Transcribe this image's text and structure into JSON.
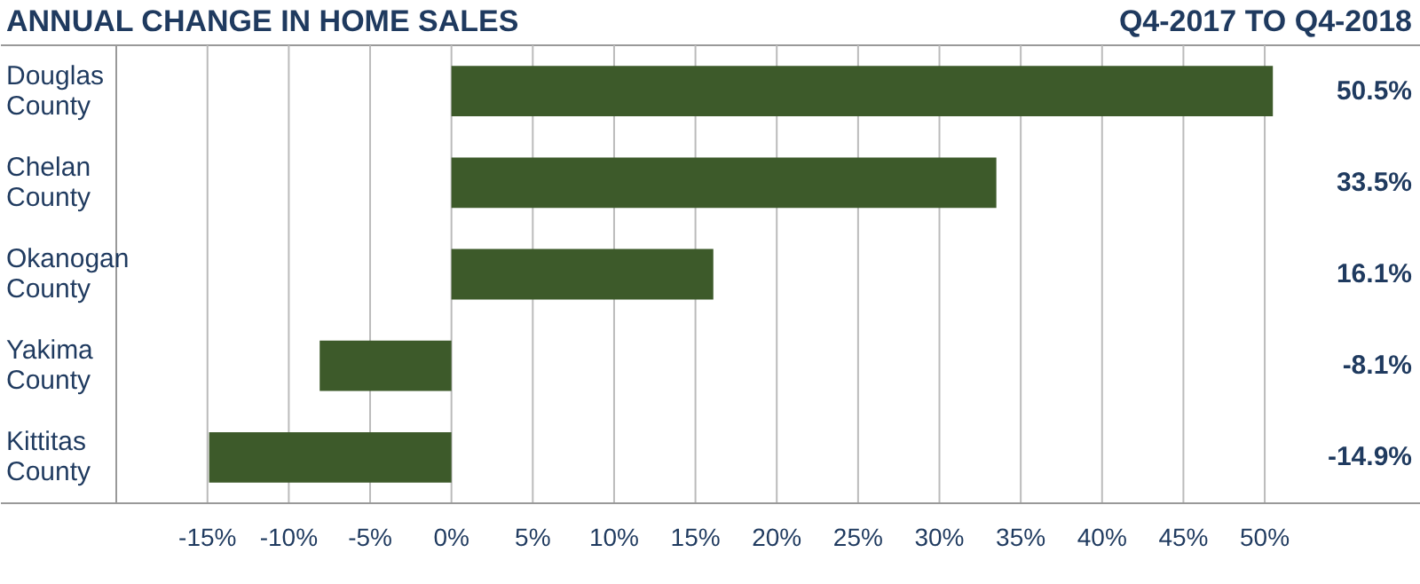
{
  "chart_data": {
    "type": "bar",
    "orientation": "horizontal",
    "title": "ANNUAL CHANGE IN HOME SALES",
    "subtitle": "Q4-2017 TO Q4-2018",
    "categories": [
      "Douglas\nCounty",
      "Chelan\nCounty",
      "Okanogan\nCounty",
      "Yakima\nCounty",
      "Kittitas\nCounty"
    ],
    "values": [
      50.5,
      33.5,
      16.1,
      -8.1,
      -14.9
    ],
    "color": "#3d5a2a",
    "data_labels": true,
    "value_labels": [
      "50.5%",
      "33.5%",
      "16.1%",
      "-8.1%",
      "-14.9%"
    ],
    "xlim": [
      -27.7,
      59.6
    ],
    "xticks": [
      {
        "value": -15,
        "label": "-15%"
      },
      {
        "value": -10,
        "label": "-10%"
      },
      {
        "value": -5,
        "label": "-5%"
      },
      {
        "value": 0,
        "label": "0%"
      },
      {
        "value": 5,
        "label": "5%"
      },
      {
        "value": 10,
        "label": "10%"
      },
      {
        "value": 15,
        "label": "15%"
      },
      {
        "value": 20,
        "label": "20%"
      },
      {
        "value": 25,
        "label": "25%"
      },
      {
        "value": 30,
        "label": "30%"
      },
      {
        "value": 35,
        "label": "35%"
      },
      {
        "value": 40,
        "label": "40%"
      },
      {
        "value": 45,
        "label": "45%"
      },
      {
        "value": 50,
        "label": "50%"
      }
    ],
    "grid": "x"
  }
}
